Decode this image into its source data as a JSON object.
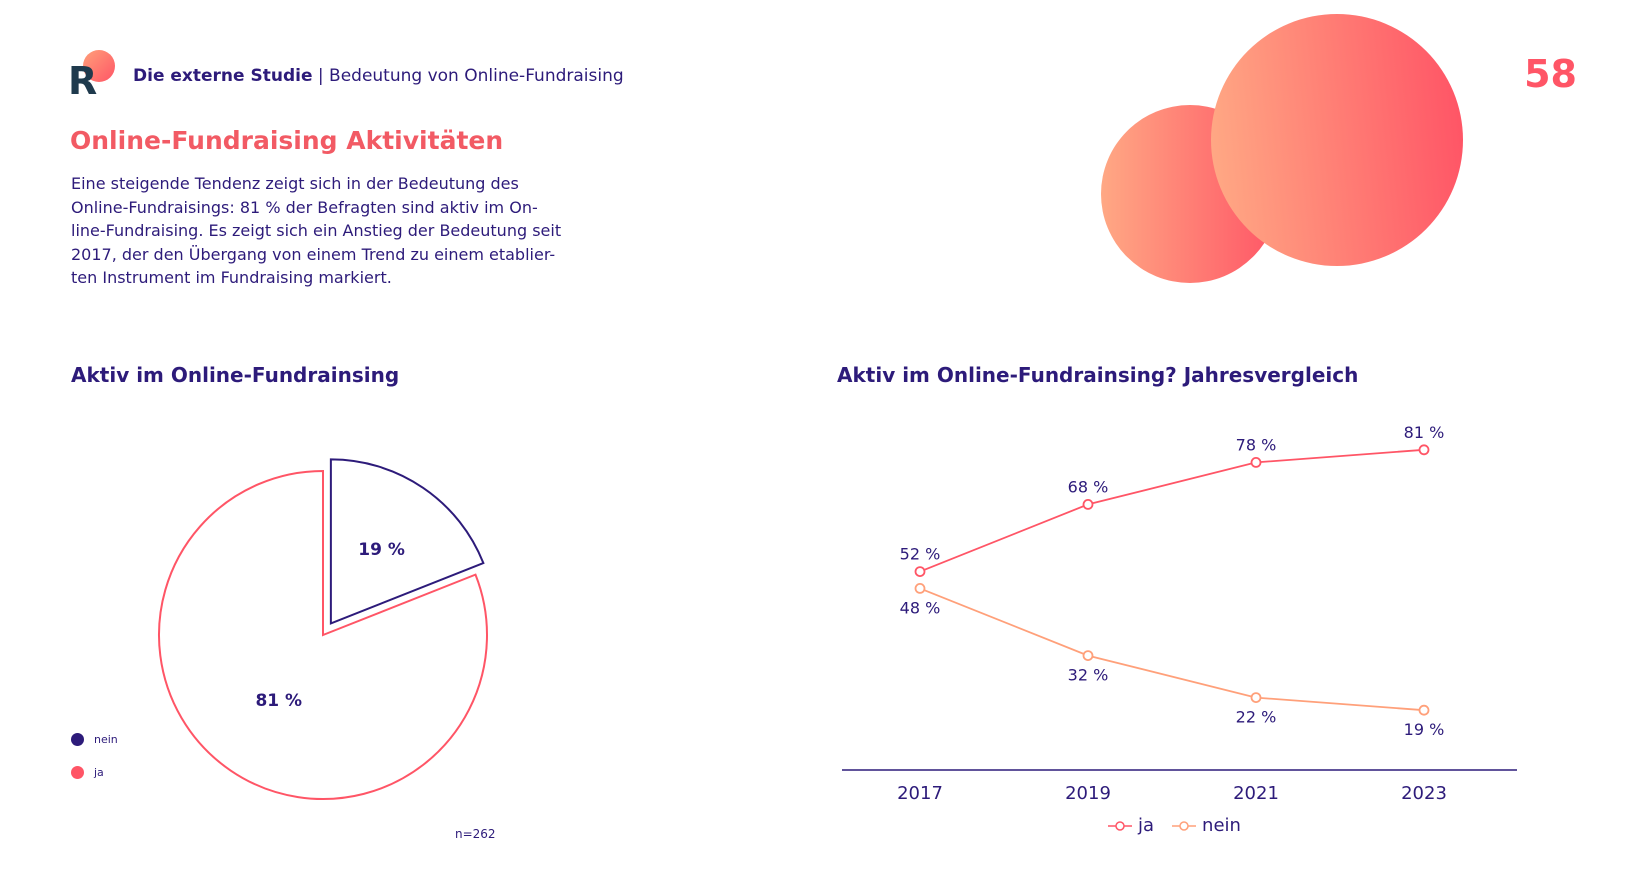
{
  "header": {
    "study": "Die externe Studie",
    "separator": " | ",
    "topic": "Bedeutung von Online-Fundraising",
    "page_number": "58"
  },
  "logo": {
    "letter": "R"
  },
  "title": "Online-Fundraising Aktivitäten",
  "intro_lines": [
    "Eine steigende Tendenz zeigt sich in der Bedeutung des",
    "Online-Fundraisings: 81 % der Befragten sind aktiv im On-",
    "line-Fundraising. Es zeigt sich ein Anstieg der Bedeutung seit",
    "2017, der den Übergang von einem Trend zu einem etablier-",
    "ten Instrument im Fundraising markiert."
  ],
  "colors": {
    "accent": "#ff5566",
    "coral": "#f25a64",
    "navy": "#2d1b7a",
    "peach": "#ffa07a"
  },
  "chart_data": [
    {
      "type": "pie",
      "title": "Aktiv im Online-Fundrainsing",
      "slices": [
        {
          "label": "nein",
          "value": 19,
          "display": "19 %",
          "color": "#2d1b7a",
          "exploded": true
        },
        {
          "label": "ja",
          "value": 81,
          "display": "81 %",
          "color": "#ff5566",
          "exploded": false
        }
      ],
      "legend": [
        {
          "label": "nein",
          "color": "#2d1b7a"
        },
        {
          "label": "ja",
          "color": "#ff5566"
        }
      ],
      "legend_position": "left",
      "note": "n=262"
    },
    {
      "type": "line",
      "title": "Aktiv im Online-Fundrainsing? Jahresvergleich",
      "categories": [
        "2017",
        "2019",
        "2021",
        "2023"
      ],
      "series": [
        {
          "name": "ja",
          "values": [
            52,
            68,
            78,
            81
          ],
          "labels": [
            "52 %",
            "68 %",
            "78 %",
            "81 %"
          ],
          "color": "#ff5566"
        },
        {
          "name": "nein",
          "values": [
            48,
            32,
            22,
            19
          ],
          "labels": [
            "48 %",
            "32 %",
            "22 %",
            "19 %"
          ],
          "color": "#ffa07a"
        }
      ],
      "legend_position": "bottom",
      "grid": false
    }
  ]
}
